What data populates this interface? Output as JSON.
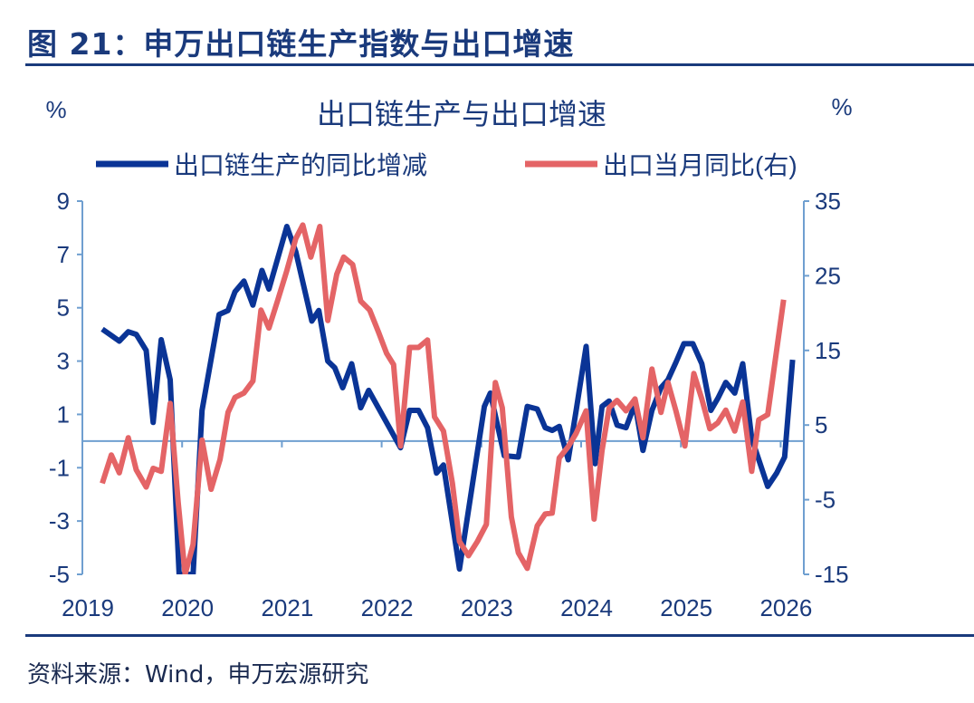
{
  "figure_title": "图 21：申万出口链生产指数与出口增速",
  "source": "资料来源：Wind，申万宏源研究",
  "colors": {
    "blue": "#0a3496",
    "red": "#e46466",
    "axis": "#6f9fd0",
    "text": "#1a3a7c"
  },
  "chart_data": {
    "type": "line",
    "title": "出口链生产与出口增速",
    "ylabel_left": "%",
    "ylabel_right": "%",
    "legend_position": "top",
    "xlim": [
      2019,
      2026.2
    ],
    "x_ticks": [
      "2019",
      "2020",
      "2021",
      "2022",
      "2023",
      "2024",
      "2025",
      "2026"
    ],
    "y_left": {
      "lim": [
        -5,
        9
      ],
      "ticks": [
        "9",
        "7",
        "5",
        "3",
        "1",
        "-1",
        "-3",
        "-5"
      ]
    },
    "y_right": {
      "lim": [
        -15,
        35
      ],
      "ticks": [
        "35",
        "25",
        "15",
        "5",
        "-5",
        "-15"
      ]
    },
    "series": [
      {
        "name": "出口链生产的同比增减",
        "axis": "left",
        "color": "#0a3496",
        "x": [
          2019.2,
          2019.37,
          2019.46,
          2019.54,
          2019.64,
          2019.71,
          2019.79,
          2019.88,
          2019.97,
          2020.11,
          2020.2,
          2020.37,
          2020.46,
          2020.53,
          2020.62,
          2020.71,
          2020.8,
          2020.87,
          2021.05,
          2021.14,
          2021.3,
          2021.37,
          2021.46,
          2021.53,
          2021.61,
          2021.7,
          2021.79,
          2021.87,
          2022.19,
          2022.28,
          2022.37,
          2022.46,
          2022.55,
          2022.62,
          2022.78,
          2023.03,
          2023.09,
          2023.23,
          2023.37,
          2023.46,
          2023.56,
          2023.64,
          2023.71,
          2023.78,
          2023.87,
          2023.95,
          2024.05,
          2024.14,
          2024.21,
          2024.28,
          2024.36,
          2024.45,
          2024.54,
          2024.62,
          2024.71,
          2024.8,
          2024.87,
          2024.95,
          2025.03,
          2025.12,
          2025.21,
          2025.3,
          2025.37,
          2025.45,
          2025.54,
          2025.62,
          2025.71,
          2025.87,
          2025.96,
          2026.04,
          2026.12
        ],
        "y": [
          4.2,
          3.75,
          4.1,
          4.0,
          3.4,
          0.7,
          3.8,
          2.3,
          -5,
          -5,
          1.15,
          4.75,
          4.9,
          5.6,
          6.0,
          5.1,
          6.4,
          5.7,
          8.05,
          7.1,
          4.5,
          4.9,
          3.0,
          2.75,
          2.0,
          2.9,
          1.25,
          1.9,
          -0.25,
          1.15,
          1.15,
          0.5,
          -1.2,
          -0.9,
          -4.8,
          1.3,
          1.8,
          -0.55,
          -0.6,
          1.3,
          1.2,
          0.5,
          0.4,
          0.55,
          -0.7,
          1.15,
          3.55,
          -0.85,
          1.3,
          1.5,
          0.6,
          0.5,
          1.4,
          -0.35,
          1.15,
          2.0,
          2.3,
          2.95,
          3.65,
          3.65,
          2.9,
          1.15,
          1.6,
          2.2,
          1.8,
          2.9,
          0.1,
          -1.7,
          -1.2,
          -0.6,
          3.05
        ]
      },
      {
        "name": "出口当月同比(右)",
        "axis": "right",
        "color": "#e46466",
        "x": [
          2019.2,
          2019.29,
          2019.37,
          2019.46,
          2019.54,
          2019.64,
          2019.71,
          2019.79,
          2019.88,
          2019.96,
          2020.03,
          2020.11,
          2020.2,
          2020.29,
          2020.38,
          2020.46,
          2020.53,
          2020.62,
          2020.71,
          2020.79,
          2020.87,
          2020.96,
          2021.05,
          2021.14,
          2021.21,
          2021.29,
          2021.38,
          2021.46,
          2021.55,
          2021.62,
          2021.71,
          2021.79,
          2021.88,
          2021.97,
          2022.05,
          2022.12,
          2022.19,
          2022.28,
          2022.37,
          2022.46,
          2022.53,
          2022.62,
          2022.71,
          2022.78,
          2022.87,
          2022.96,
          2023.05,
          2023.14,
          2023.21,
          2023.3,
          2023.37,
          2023.46,
          2023.56,
          2023.64,
          2023.71,
          2023.78,
          2023.87,
          2023.95,
          2024.05,
          2024.13,
          2024.21,
          2024.28,
          2024.36,
          2024.45,
          2024.54,
          2024.62,
          2024.71,
          2024.8,
          2024.87,
          2024.95,
          2025.04,
          2025.13,
          2025.21,
          2025.29,
          2025.37,
          2025.45,
          2025.54,
          2025.62,
          2025.71,
          2025.78,
          2025.87,
          2026.03
        ],
        "y": [
          -2.8,
          1.0,
          -1.4,
          3.3,
          -1.0,
          -3.3,
          -0.8,
          -1.2,
          7.9,
          -5.3,
          -15,
          -11,
          3.0,
          -3.6,
          0.4,
          6.7,
          8.7,
          9.3,
          10.9,
          20.4,
          18.0,
          21.8,
          25.7,
          30.0,
          31.8,
          27.5,
          31.6,
          19.0,
          25.2,
          27.5,
          26.5,
          21.6,
          20.4,
          17.4,
          14.6,
          13.1,
          2.2,
          15.4,
          15.4,
          16.4,
          6.1,
          4.2,
          -2.8,
          -10.6,
          -12.5,
          -10.6,
          -8.3,
          10.7,
          7.3,
          -7.3,
          -12.1,
          -14.2,
          -8.5,
          -6.9,
          -6.8,
          0.6,
          2.1,
          3.9,
          6.9,
          -7.6,
          1.6,
          7.3,
          8.3,
          6.9,
          8.5,
          3.3,
          12.5,
          6.7,
          10.7,
          6.9,
          2.2,
          11.9,
          8.5,
          4.5,
          5.3,
          7.0,
          4.2,
          8.1,
          -1.2,
          5.7,
          6.4,
          21.8
        ]
      }
    ]
  }
}
